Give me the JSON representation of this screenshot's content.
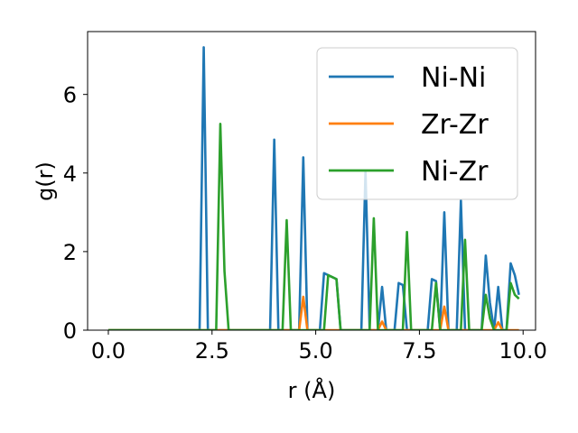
{
  "chart_data": {
    "type": "line",
    "xlabel": "r (Å)",
    "ylabel": "g(r)",
    "xlim": [
      -0.5,
      10.3
    ],
    "ylim": [
      0,
      7.6
    ],
    "xticks": [
      0.0,
      2.5,
      5.0,
      7.5,
      10.0
    ],
    "xtick_labels": [
      "0.0",
      "2.5",
      "5.0",
      "7.5",
      "10.0"
    ],
    "yticks": [
      0,
      2,
      4,
      6
    ],
    "ytick_labels": [
      "0",
      "2",
      "4",
      "6"
    ],
    "grid": false,
    "legend_position": "top-right",
    "series": [
      {
        "name": "Ni-Ni",
        "color": "#1f77b4",
        "x": [
          0.0,
          2.2,
          2.3,
          2.4,
          3.9,
          4.0,
          4.1,
          4.6,
          4.7,
          4.8,
          5.1,
          5.2,
          5.5,
          5.6,
          6.1,
          6.2,
          6.3,
          6.5,
          6.6,
          6.7,
          6.9,
          7.0,
          7.1,
          7.2,
          7.7,
          7.8,
          7.9,
          8.0,
          8.1,
          8.2,
          8.4,
          8.5,
          8.6,
          9.0,
          9.1,
          9.2,
          9.3,
          9.4,
          9.5,
          9.6,
          9.7,
          9.8,
          9.9
        ],
        "y": [
          0,
          0,
          7.2,
          0,
          0,
          4.85,
          0,
          0,
          4.4,
          0,
          0,
          1.45,
          1.3,
          0,
          0,
          4.05,
          0,
          0,
          1.1,
          0,
          0,
          1.2,
          1.15,
          0,
          0,
          1.3,
          1.25,
          0,
          3.0,
          0,
          0,
          3.3,
          0,
          0,
          1.9,
          0.7,
          0,
          1.1,
          0,
          0,
          1.7,
          1.4,
          0.9
        ]
      },
      {
        "name": "Zr-Zr",
        "color": "#ff7f0e",
        "x": [
          0.0,
          4.6,
          4.7,
          4.8,
          6.5,
          6.6,
          6.7,
          8.0,
          8.1,
          8.2,
          9.3,
          9.4,
          9.5,
          9.9
        ],
        "y": [
          0,
          0,
          0.85,
          0,
          0,
          0.22,
          0,
          0,
          0.6,
          0,
          0,
          0.2,
          0,
          0
        ]
      },
      {
        "name": "Ni-Zr",
        "color": "#2ca02c",
        "x": [
          0.0,
          2.6,
          2.7,
          2.8,
          2.9,
          4.2,
          4.3,
          4.4,
          5.2,
          5.3,
          5.4,
          5.5,
          5.6,
          6.3,
          6.4,
          6.5,
          7.1,
          7.2,
          7.3,
          7.8,
          7.9,
          8.0,
          8.5,
          8.6,
          8.7,
          9.0,
          9.1,
          9.2,
          9.3,
          9.6,
          9.7,
          9.8,
          9.9
        ],
        "y": [
          0,
          0,
          5.25,
          1.5,
          0,
          0,
          2.8,
          0,
          0,
          1.4,
          1.35,
          1.3,
          0,
          0,
          2.85,
          0,
          0,
          2.5,
          0,
          0,
          1.2,
          0,
          0,
          2.3,
          0,
          0,
          0.9,
          0.3,
          0,
          0,
          1.2,
          0.9,
          0.8
        ]
      }
    ]
  }
}
